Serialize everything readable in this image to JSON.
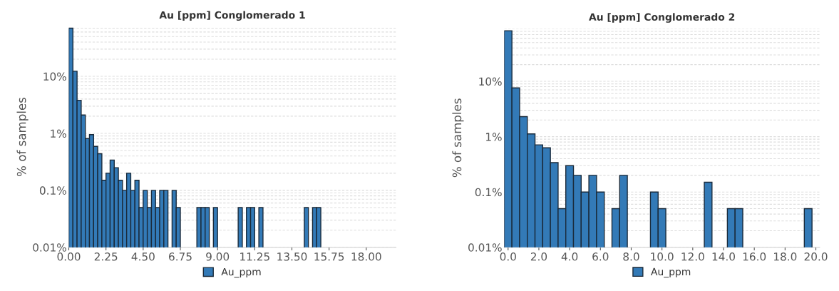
{
  "chart_data": [
    {
      "type": "histogram",
      "title": "Au [ppm] Conglomerado 1",
      "ylabel": "% of samples",
      "log": "y",
      "grid": "y",
      "legend": "bottom",
      "bins": [
        0,
        0.25,
        0.5,
        0.75,
        1,
        1.25,
        1.5,
        1.75,
        2,
        2.25,
        2.5,
        2.75,
        3,
        3.25,
        3.5,
        3.75,
        4,
        4.25,
        4.5,
        4.75,
        5,
        5.25,
        5.5,
        5.75,
        6,
        6.25,
        6.5,
        6.75,
        7,
        7.25,
        7.5,
        7.75,
        8,
        8.25,
        8.5,
        8.75,
        9,
        9.25,
        9.5,
        9.75,
        10,
        10.25,
        10.5,
        10.75,
        11,
        11.25,
        11.5,
        11.75,
        12,
        12.25,
        12.5,
        12.75,
        13,
        13.25,
        13.5,
        13.75,
        14,
        14.25,
        14.5,
        14.75,
        15,
        15.25
      ],
      "series": [
        {
          "name": "Au_ppm",
          "color": "#337ab7",
          "values": [
            70,
            12.3,
            3.8,
            2.1,
            0.81,
            0.95,
            0.59,
            0.44,
            0.15,
            0.2,
            0.34,
            0.25,
            0.15,
            0.1,
            0.2,
            0.1,
            0.15,
            0.05,
            0.1,
            0.05,
            0.1,
            0.05,
            0.1,
            0.1,
            null,
            0.1,
            0.05,
            null,
            null,
            null,
            null,
            0.05,
            0.05,
            0.05,
            null,
            0.05,
            null,
            null,
            null,
            null,
            null,
            0.05,
            null,
            0.05,
            0.05,
            null,
            0.05,
            null,
            null,
            null,
            null,
            null,
            null,
            null,
            null,
            null,
            null,
            0.05,
            null,
            0.05,
            0.05
          ]
        }
      ],
      "xlim": [
        0,
        19.8
      ],
      "xticks": [
        {
          "value": 0,
          "label": "0.00"
        },
        {
          "value": 2.25,
          "label": "2.25"
        },
        {
          "value": 4.5,
          "label": "4.50"
        },
        {
          "value": 6.75,
          "label": "6.75"
        },
        {
          "value": 9,
          "label": "9.00"
        },
        {
          "value": 11.25,
          "label": "11.25"
        },
        {
          "value": 13.5,
          "label": "13.50"
        },
        {
          "value": 15.75,
          "label": "15.75"
        },
        {
          "value": 18,
          "label": "18.00"
        }
      ],
      "ylim": [
        0.01,
        75
      ],
      "yticks": [
        {
          "value": 0.01,
          "label": "0.01%"
        },
        {
          "value": 0.1,
          "label": "0.1%"
        },
        {
          "value": 1,
          "label": "1%"
        },
        {
          "value": 10,
          "label": "10%"
        }
      ]
    },
    {
      "type": "histogram",
      "title": "Au [ppm] Conglomerado 2",
      "ylabel": "% of samples",
      "log": "y",
      "grid": "y",
      "legend": "bottom",
      "bins": [
        -0.25,
        0.25,
        0.75,
        1.25,
        1.75,
        2.25,
        2.75,
        3.25,
        3.75,
        4.25,
        4.75,
        5.25,
        5.75,
        6.25,
        6.75,
        7.25,
        7.75,
        8.25,
        8.75,
        9.25,
        9.75,
        10.25,
        10.75,
        11.25,
        11.75,
        12.25,
        12.75,
        13.25,
        13.75,
        14.25,
        14.75,
        15.25,
        15.75,
        16.25,
        16.75,
        17.25,
        17.75,
        18.25,
        18.75,
        19.25,
        19.75
      ],
      "series": [
        {
          "name": "Au_ppm",
          "color": "#337ab7",
          "values": [
            82,
            7.6,
            2.3,
            1.12,
            0.71,
            0.63,
            0.34,
            0.05,
            0.3,
            0.2,
            0.1,
            0.2,
            0.1,
            null,
            0.05,
            0.2,
            null,
            null,
            null,
            0.1,
            0.05,
            null,
            null,
            null,
            null,
            null,
            0.15,
            null,
            null,
            0.05,
            0.05,
            null,
            null,
            null,
            null,
            null,
            null,
            null,
            null,
            0.05
          ]
        }
      ],
      "xlim": [
        -0.25,
        20.25
      ],
      "xticks": [
        {
          "value": 0,
          "label": "0.0"
        },
        {
          "value": 2,
          "label": "2.0"
        },
        {
          "value": 4,
          "label": "4.0"
        },
        {
          "value": 6,
          "label": "6.0"
        },
        {
          "value": 8,
          "label": "8.0"
        },
        {
          "value": 10,
          "label": "10.0"
        },
        {
          "value": 12,
          "label": "12.0"
        },
        {
          "value": 14,
          "label": "14.0"
        },
        {
          "value": 16,
          "label": "16.0"
        },
        {
          "value": 18,
          "label": "18.0"
        },
        {
          "value": 20,
          "label": "20.0"
        }
      ],
      "ylim": [
        0.01,
        90
      ],
      "yticks": [
        {
          "value": 0.01,
          "label": "0.01%"
        },
        {
          "value": 0.1,
          "label": "0.1%"
        },
        {
          "value": 1,
          "label": "1%"
        },
        {
          "value": 10,
          "label": "10%"
        }
      ]
    }
  ]
}
